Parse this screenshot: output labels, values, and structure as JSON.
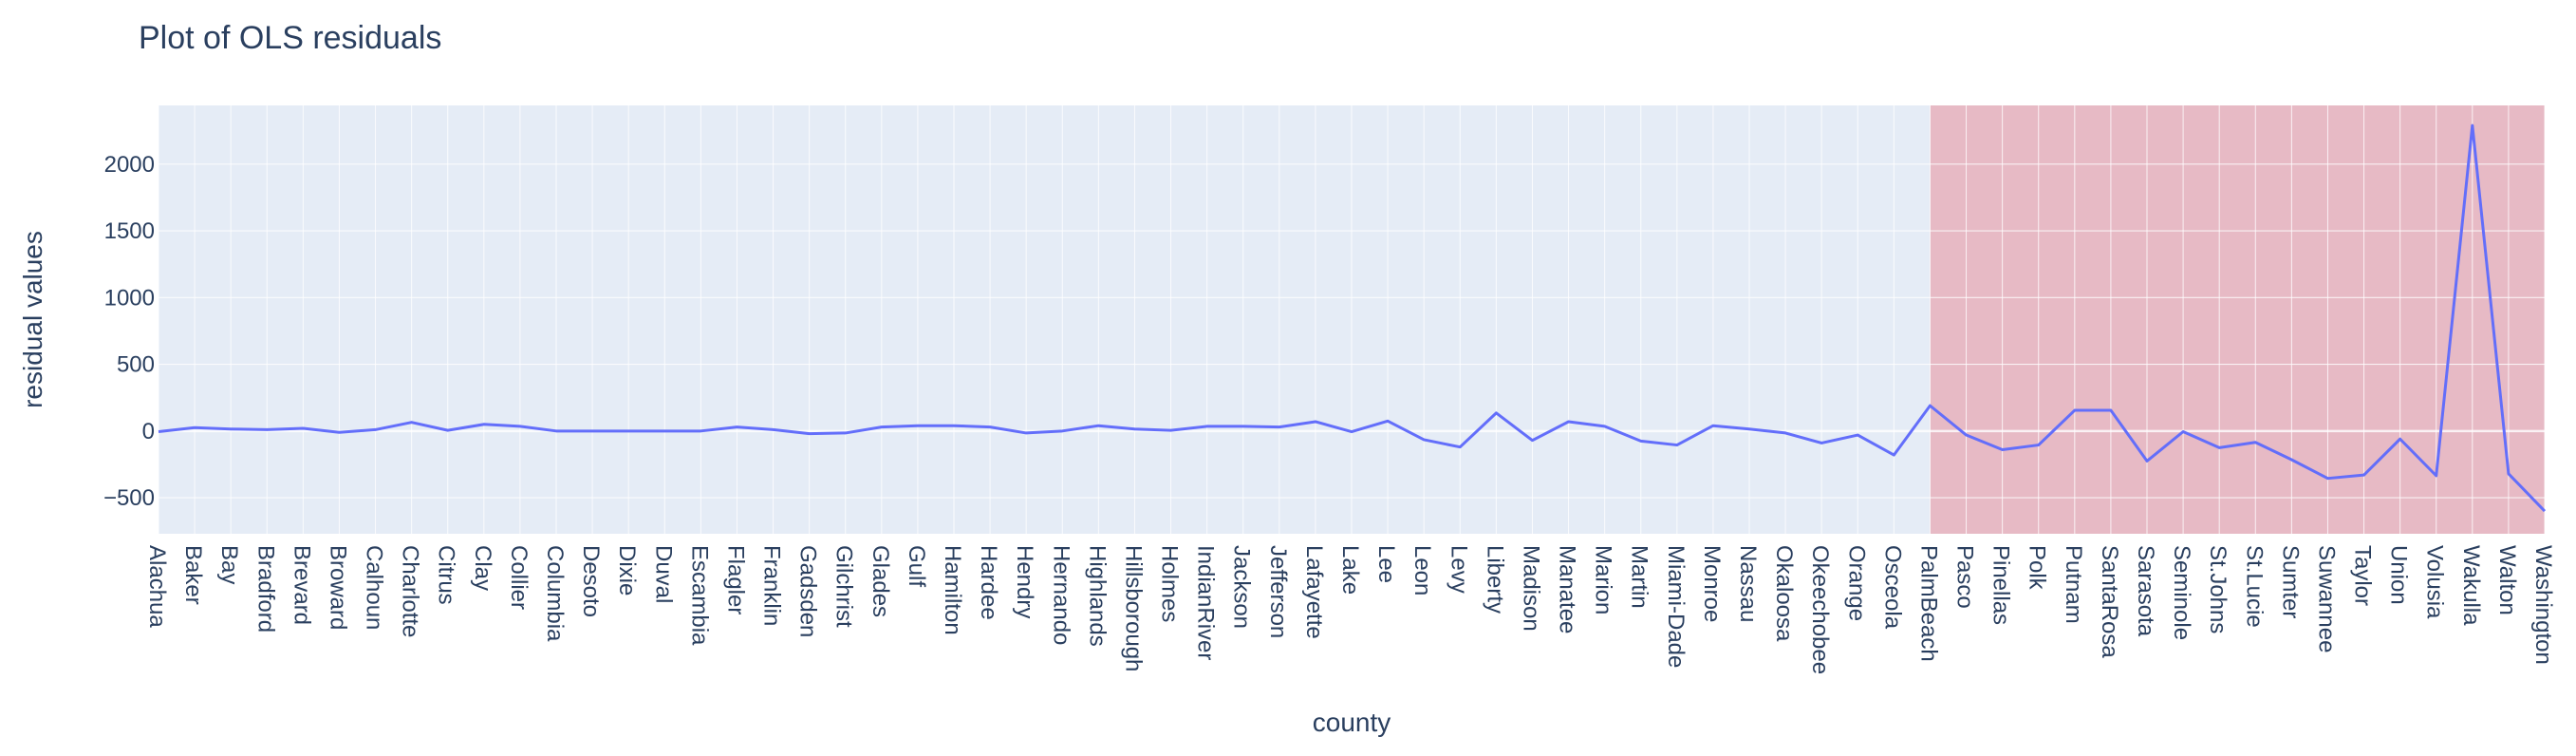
{
  "chart_data": {
    "type": "line",
    "title": "Plot of OLS residuals",
    "xlabel": "county",
    "ylabel": "residual values",
    "ylim": [
      -770,
      2440
    ],
    "yticks": [
      -500,
      0,
      500,
      1000,
      1500,
      2000
    ],
    "y_tick_labels": [
      "−500",
      "0",
      "500",
      "1000",
      "1500",
      "2000"
    ],
    "grid": true,
    "colors": {
      "line": "#636efa",
      "plot_bg": "#e5ecf6",
      "highlight": "#e8a0aa",
      "grid": "#ffffff",
      "text": "#2a3f5f"
    },
    "highlight_range": [
      "PalmBeach",
      "Washington"
    ],
    "categories": [
      "Alachua",
      "Baker",
      "Bay",
      "Bradford",
      "Brevard",
      "Broward",
      "Calhoun",
      "Charlotte",
      "Citrus",
      "Clay",
      "Collier",
      "Columbia",
      "Desoto",
      "Dixie",
      "Duval",
      "Escambia",
      "Flagler",
      "Franklin",
      "Gadsden",
      "Gilchrist",
      "Glades",
      "Gulf",
      "Hamilton",
      "Hardee",
      "Hendry",
      "Hernando",
      "Highlands",
      "Hillsborough",
      "Holmes",
      "IndianRiver",
      "Jackson",
      "Jefferson",
      "Lafayette",
      "Lake",
      "Lee",
      "Leon",
      "Levy",
      "Liberty",
      "Madison",
      "Manatee",
      "Marion",
      "Martin",
      "Miami-Dade",
      "Monroe",
      "Nassau",
      "Okaloosa",
      "Okeechobee",
      "Orange",
      "Osceola",
      "PalmBeach",
      "Pasco",
      "Pinellas",
      "Polk",
      "Putnam",
      "SantaRosa",
      "Sarasota",
      "Seminole",
      "St.Johns",
      "St.Lucie",
      "Sumter",
      "Suwannee",
      "Taylor",
      "Union",
      "Volusia",
      "Wakulla",
      "Walton",
      "Washington"
    ],
    "series": [
      {
        "values": [
          -5,
          25,
          15,
          10,
          20,
          -10,
          10,
          65,
          5,
          50,
          35,
          0,
          0,
          0,
          0,
          0,
          30,
          10,
          -20,
          -15,
          30,
          40,
          40,
          30,
          -15,
          0,
          40,
          15,
          5,
          35,
          35,
          30,
          70,
          -5,
          75,
          -65,
          -120,
          135,
          -70,
          70,
          35,
          -75,
          -105,
          40,
          15,
          -15,
          -90,
          -30,
          -180,
          190,
          -30,
          -140,
          -105,
          155,
          155,
          -225,
          -5,
          -125,
          -85,
          -215,
          -355,
          -330,
          -60,
          -335,
          2290,
          -320,
          -600
        ]
      }
    ]
  }
}
